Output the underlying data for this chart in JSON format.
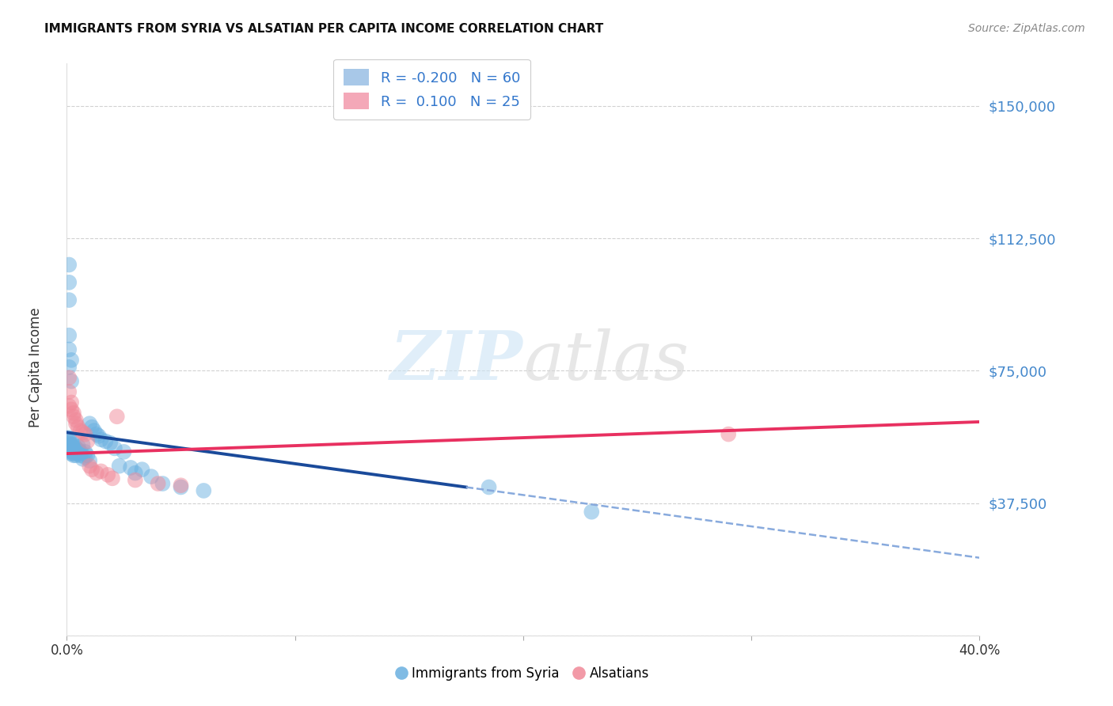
{
  "title": "IMMIGRANTS FROM SYRIA VS ALSATIAN PER CAPITA INCOME CORRELATION CHART",
  "source": "Source: ZipAtlas.com",
  "ylabel": "Per Capita Income",
  "yticks": [
    0,
    37500,
    75000,
    112500,
    150000
  ],
  "ytick_labels": [
    "",
    "$37,500",
    "$75,000",
    "$112,500",
    "$150,000"
  ],
  "xlim": [
    0.0,
    0.4
  ],
  "ylim": [
    0,
    162000
  ],
  "legend_entries": [
    {
      "label_r": "R = -0.200",
      "label_n": "N = 60",
      "color": "#a8c8e8"
    },
    {
      "label_r": "R =  0.100",
      "label_n": "N = 25",
      "color": "#f4a8b8"
    }
  ],
  "bottom_legend": [
    "Immigrants from Syria",
    "Alsatians"
  ],
  "watermark": "ZIPatlas",
  "background_color": "#ffffff",
  "grid_color": "#cccccc",
  "blue_scatter_x": [
    0.001,
    0.001,
    0.001,
    0.001,
    0.001,
    0.001,
    0.001,
    0.002,
    0.002,
    0.002,
    0.002,
    0.002,
    0.002,
    0.003,
    0.003,
    0.003,
    0.003,
    0.003,
    0.004,
    0.004,
    0.004,
    0.005,
    0.005,
    0.005,
    0.006,
    0.006,
    0.007,
    0.007,
    0.008,
    0.008,
    0.009,
    0.01,
    0.01,
    0.011,
    0.012,
    0.013,
    0.014,
    0.015,
    0.017,
    0.019,
    0.021,
    0.023,
    0.025,
    0.028,
    0.03,
    0.033,
    0.037,
    0.042,
    0.05,
    0.06,
    0.001,
    0.001,
    0.001,
    0.001,
    0.001,
    0.001,
    0.002,
    0.002,
    0.185,
    0.23
  ],
  "blue_scatter_y": [
    56000,
    55000,
    54500,
    54000,
    53500,
    53000,
    52500,
    55000,
    54000,
    53000,
    52500,
    52000,
    51500,
    54000,
    53000,
    52000,
    51500,
    51000,
    53000,
    52000,
    51000,
    53500,
    52500,
    51500,
    52000,
    51000,
    54000,
    50000,
    52000,
    50500,
    51000,
    60000,
    49500,
    59000,
    58000,
    57000,
    56500,
    55500,
    55000,
    54500,
    53000,
    48000,
    52000,
    47500,
    46000,
    47000,
    45000,
    43000,
    42000,
    41000,
    76000,
    81000,
    85000,
    95000,
    105000,
    100000,
    78000,
    72000,
    42000,
    35000
  ],
  "pink_scatter_x": [
    0.001,
    0.001,
    0.001,
    0.002,
    0.002,
    0.003,
    0.003,
    0.004,
    0.004,
    0.005,
    0.006,
    0.007,
    0.008,
    0.009,
    0.01,
    0.011,
    0.013,
    0.015,
    0.018,
    0.022,
    0.03,
    0.04,
    0.05,
    0.29,
    0.02
  ],
  "pink_scatter_y": [
    73000,
    69000,
    65000,
    66000,
    64000,
    63000,
    62000,
    61000,
    60000,
    59000,
    58000,
    57500,
    57000,
    55000,
    48000,
    47000,
    46000,
    46500,
    45500,
    62000,
    44000,
    43000,
    42500,
    57000,
    44500
  ],
  "blue_solid_line_x": [
    0.0,
    0.175
  ],
  "blue_solid_line_y": [
    57500,
    42000
  ],
  "blue_dash_line_x": [
    0.175,
    0.4
  ],
  "blue_dash_line_y": [
    42000,
    22000
  ],
  "pink_line_x": [
    0.0,
    0.4
  ],
  "pink_line_y": [
    51500,
    60500
  ],
  "blue_line_color": "#1a4a9a",
  "blue_dash_color": "#88aadd",
  "pink_line_color": "#e83060",
  "scatter_blue_color": "#6ab0e0",
  "scatter_pink_color": "#f08898",
  "scatter_alpha": 0.5,
  "scatter_size": 200
}
